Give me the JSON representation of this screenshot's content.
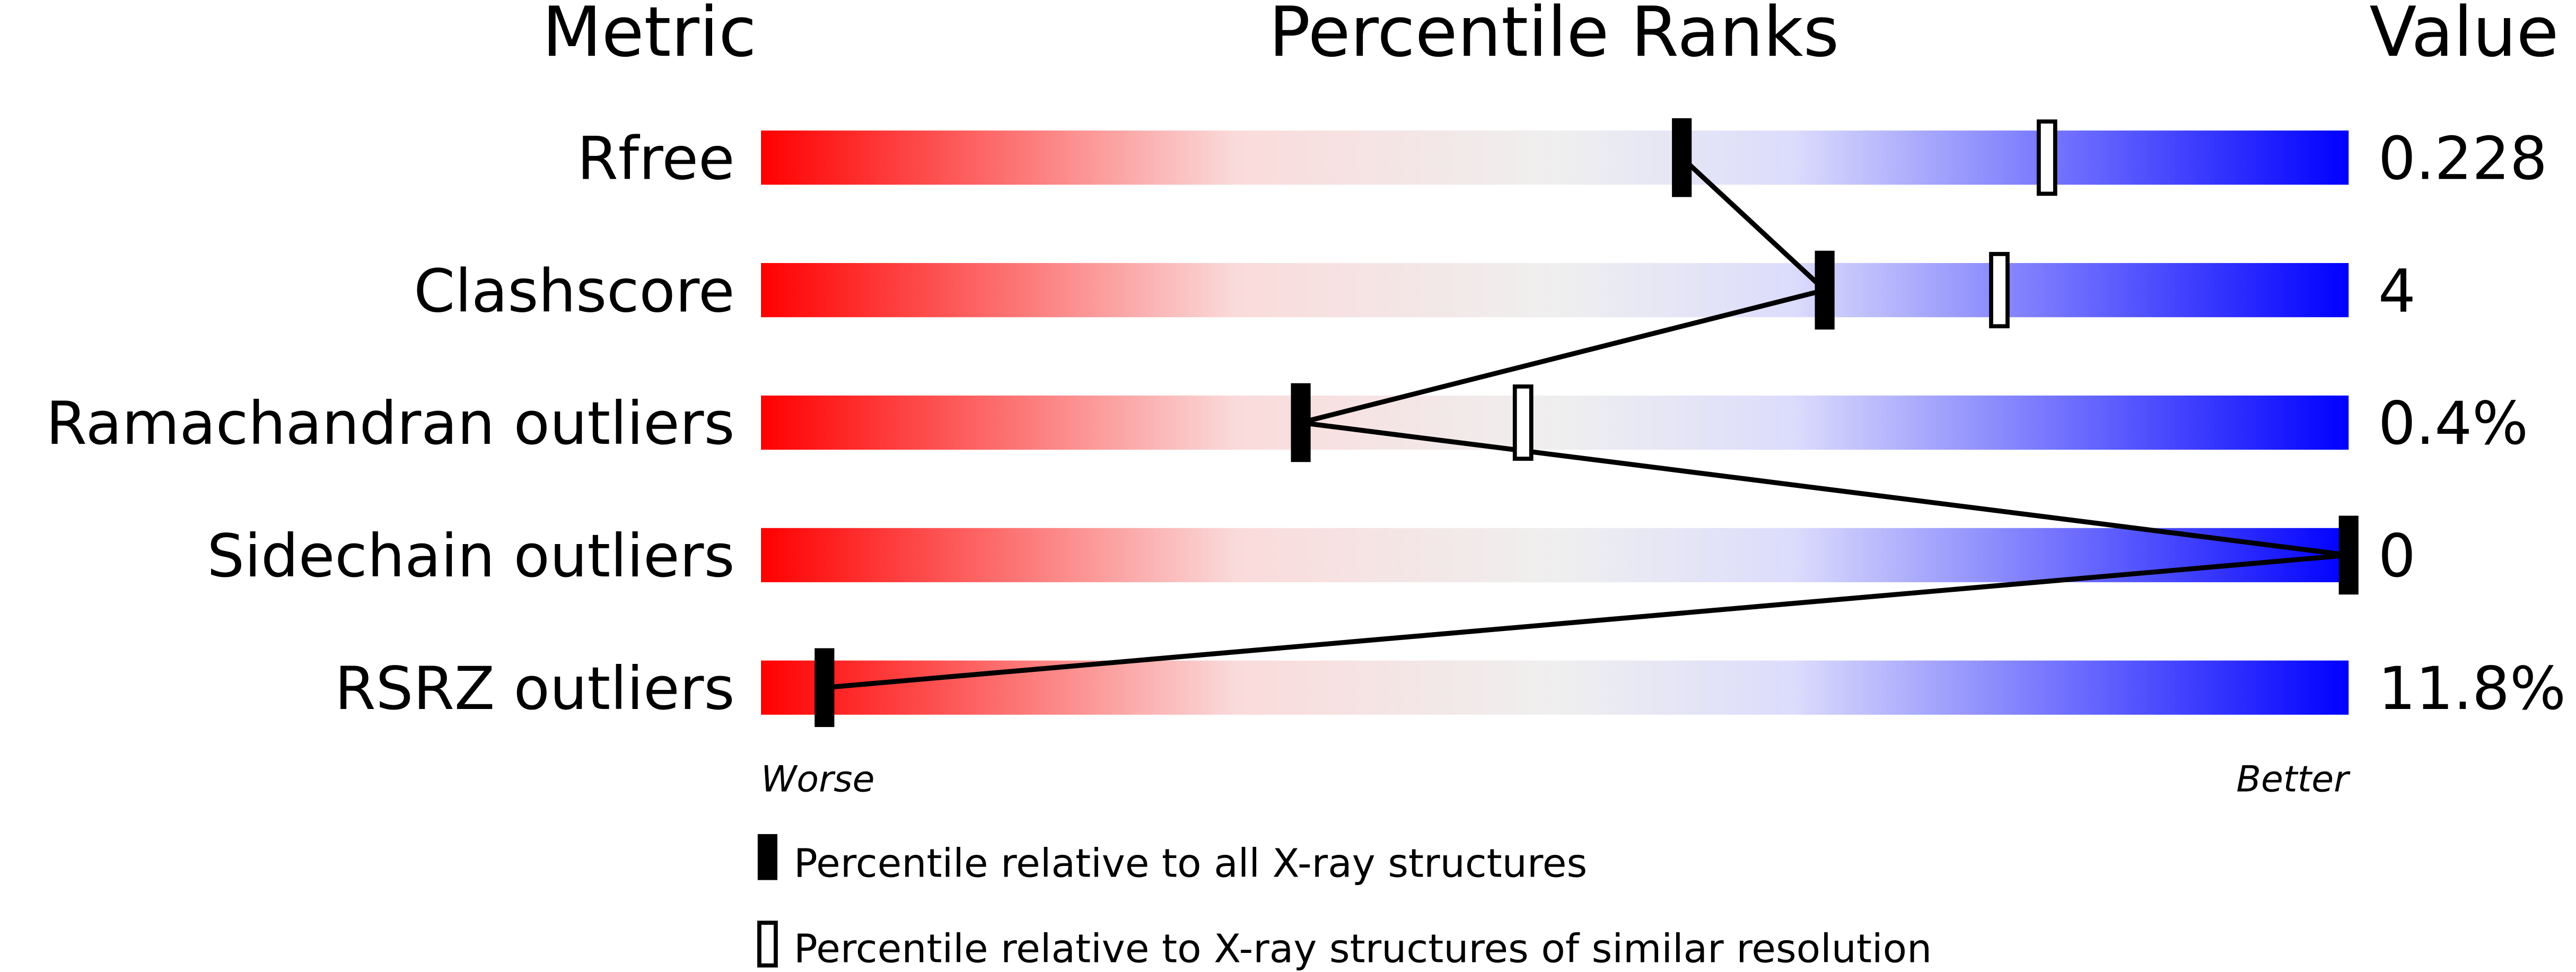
{
  "chart_data": {
    "type": "bar",
    "headers": {
      "metric": "Metric",
      "ranks": "Percentile Ranks",
      "value": "Value"
    },
    "xlim": [
      0,
      100
    ],
    "rows": [
      {
        "metric": "Rfree",
        "value": "0.228",
        "percentile_all": 58,
        "percentile_similar": 81
      },
      {
        "metric": "Clashscore",
        "value": "4",
        "percentile_all": 67,
        "percentile_similar": 78
      },
      {
        "metric": "Ramachandran outliers",
        "value": "0.4%",
        "percentile_all": 34,
        "percentile_similar": 48
      },
      {
        "metric": "Sidechain outliers",
        "value": "0",
        "percentile_all": 100,
        "percentile_similar": null
      },
      {
        "metric": "RSRZ outliers",
        "value": "11.8%",
        "percentile_all": 4,
        "percentile_similar": null
      }
    ],
    "axis": {
      "worse": "Worse",
      "better": "Better"
    },
    "legend": {
      "all": "Percentile relative to all X-ray structures",
      "similar": "Percentile relative to X-ray structures of similar resolution"
    },
    "colors": {
      "worse": "#ff0000",
      "mid": "#efefef",
      "better": "#0000ff",
      "marker": "#000000"
    }
  }
}
